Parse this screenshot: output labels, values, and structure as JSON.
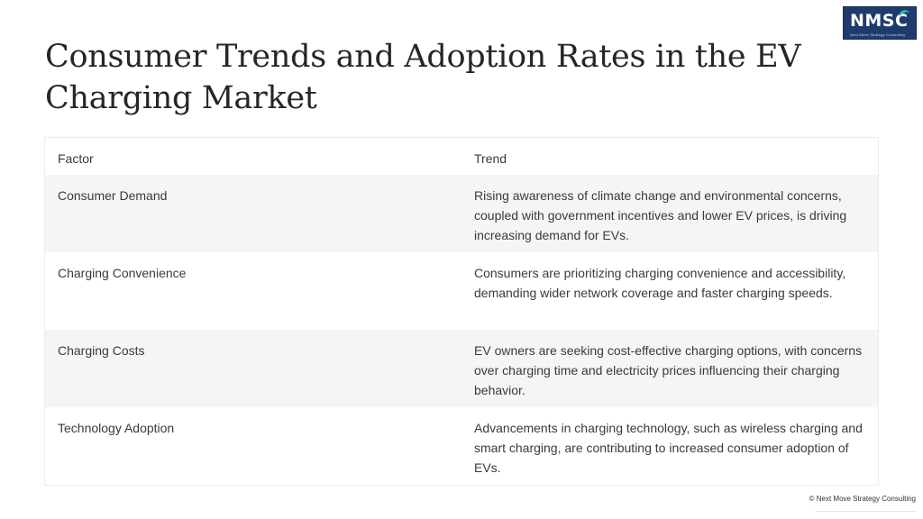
{
  "title": "Consumer Trends and Adoption Rates in the EV Charging Market",
  "logo": {
    "text": "NMSC",
    "tagline": "Next Move Strategy Consulting",
    "color": "#1f3b6e",
    "accent": "#2fb7a6"
  },
  "table": {
    "headers": {
      "factor": "Factor",
      "trend": "Trend"
    },
    "rows": [
      {
        "factor": "Consumer Demand",
        "trend": "Rising awareness of climate change and environmental concerns, coupled with government incentives and lower EV prices, is driving increasing demand for EVs."
      },
      {
        "factor": "Charging Convenience",
        "trend": "Consumers are prioritizing charging convenience and accessibility, demanding wider network coverage and faster charging speeds."
      },
      {
        "factor": "Charging Costs",
        "trend": "EV owners are seeking cost-effective charging options, with concerns over charging time and electricity prices influencing their charging behavior."
      },
      {
        "factor": "Technology Adoption",
        "trend": "Advancements in charging technology, such as wireless charging and smart charging, are contributing to increased consumer adoption of EVs."
      }
    ]
  },
  "footer": "© Next Move Strategy Consulting"
}
